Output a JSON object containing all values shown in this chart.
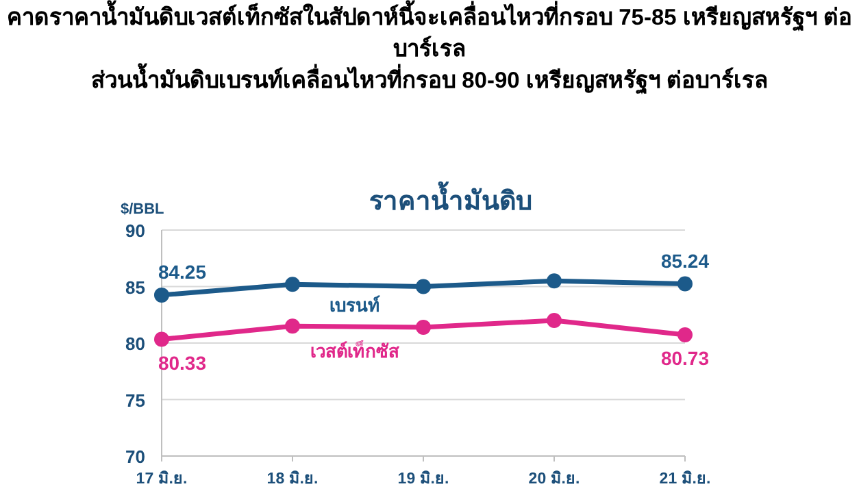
{
  "chart_data": {
    "type": "line",
    "title": "ราคาน้ำมันดิบ",
    "ylabel": "$/BBL",
    "annotations": [
      "คาดราคาน้ำมันดิบเวสต์เท็กซัสในสัปดาห์นี้จะเคลื่อนไหวที่กรอบ 75-85 เหรียญสหรัฐฯ ต่อบาร์เรล",
      "ส่วนน้ำมันดิบเบรนท์เคลื่อนไหวที่กรอบ 80-90 เหรียญสหรัฐฯ ต่อบาร์เรล"
    ],
    "categories": [
      "17 มิ.ย.",
      "18 มิ.ย.",
      "19 มิ.ย.",
      "20 มิ.ย.",
      "21 มิ.ย."
    ],
    "ylim": [
      70,
      90
    ],
    "yticks": [
      70,
      75,
      80,
      85,
      90
    ],
    "grid": "y",
    "legend": false,
    "marker": "circle",
    "series": [
      {
        "name": "เบรนท์",
        "color": "#1c5a8a",
        "values": [
          84.25,
          85.2,
          85.0,
          85.5,
          85.24
        ],
        "value_labels": [
          "84.25",
          null,
          null,
          null,
          "85.24"
        ]
      },
      {
        "name": "เวสต์เท็กซัส",
        "color": "#e0288a",
        "values": [
          80.33,
          81.5,
          81.4,
          82.0,
          80.73
        ],
        "value_labels": [
          "80.33",
          null,
          null,
          null,
          "80.73"
        ]
      }
    ]
  }
}
